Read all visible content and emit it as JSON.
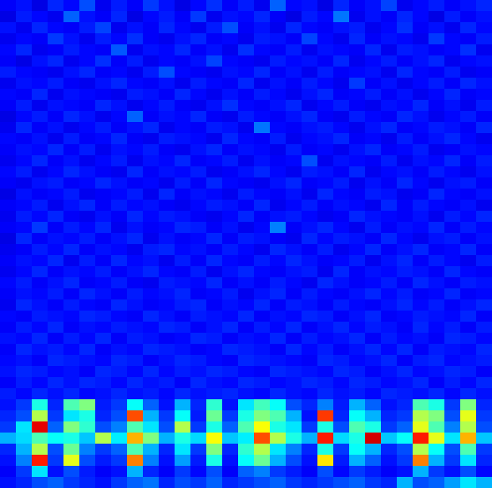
{
  "chart_data": {
    "type": "heatmap",
    "tick_labels": false,
    "color_range": [
      0,
      100
    ],
    "cells": [
      [
        12,
        14,
        10,
        16,
        13,
        20,
        11,
        15,
        12,
        18,
        14,
        10,
        13,
        17,
        12,
        15,
        11,
        22,
        13,
        14,
        10,
        16,
        12,
        14,
        19,
        11,
        13,
        15,
        12,
        14,
        16
      ],
      [
        10,
        15,
        13,
        11,
        22,
        14,
        12,
        16,
        10,
        13,
        15,
        12,
        18,
        11,
        14,
        13,
        16,
        12,
        10,
        15,
        13,
        24,
        11,
        14,
        12,
        16,
        13,
        10,
        15,
        12,
        14
      ],
      [
        14,
        11,
        16,
        13,
        12,
        15,
        19,
        11,
        14,
        12,
        16,
        13,
        11,
        15,
        20,
        12,
        14,
        11,
        16,
        13,
        12,
        14,
        15,
        11,
        13,
        17,
        12,
        14,
        11,
        16,
        13
      ],
      [
        11,
        13,
        12,
        18,
        14,
        11,
        15,
        13,
        17,
        12,
        11,
        14,
        16,
        12,
        13,
        11,
        15,
        14,
        12,
        19,
        13,
        11,
        16,
        12,
        14,
        13,
        11,
        18,
        13,
        12,
        15
      ],
      [
        13,
        16,
        11,
        12,
        15,
        13,
        12,
        21,
        11,
        14,
        13,
        16,
        12,
        14,
        11,
        17,
        13,
        12,
        15,
        11,
        14,
        13,
        12,
        16,
        11,
        15,
        14,
        12,
        13,
        17,
        11
      ],
      [
        12,
        10,
        14,
        16,
        11,
        13,
        17,
        12,
        15,
        11,
        13,
        12,
        14,
        19,
        13,
        12,
        11,
        15,
        13,
        14,
        12,
        16,
        11,
        13,
        15,
        12,
        14,
        16,
        11,
        13,
        14
      ],
      [
        15,
        13,
        12,
        11,
        14,
        16,
        12,
        13,
        11,
        15,
        20,
        13,
        12,
        11,
        14,
        13,
        16,
        12,
        14,
        11,
        15,
        12,
        13,
        14,
        11,
        16,
        13,
        12,
        15,
        11,
        12
      ],
      [
        11,
        14,
        13,
        15,
        12,
        11,
        14,
        16,
        13,
        12,
        14,
        11,
        15,
        13,
        12,
        16,
        11,
        14,
        12,
        15,
        13,
        11,
        18,
        12,
        14,
        11,
        13,
        15,
        12,
        16,
        14
      ],
      [
        13,
        12,
        16,
        11,
        14,
        13,
        12,
        11,
        15,
        14,
        12,
        16,
        13,
        11,
        14,
        12,
        15,
        13,
        11,
        14,
        16,
        12,
        13,
        15,
        12,
        14,
        11,
        13,
        16,
        12,
        13
      ],
      [
        12,
        15,
        11,
        14,
        13,
        12,
        16,
        14,
        11,
        13,
        15,
        12,
        11,
        14,
        17,
        13,
        12,
        14,
        16,
        11,
        13,
        15,
        12,
        11,
        14,
        13,
        16,
        12,
        14,
        11,
        15
      ],
      [
        10,
        13,
        15,
        12,
        16,
        14,
        11,
        13,
        22,
        12,
        14,
        13,
        16,
        12,
        11,
        15,
        13,
        12,
        14,
        16,
        12,
        11,
        15,
        13,
        12,
        16,
        14,
        11,
        13,
        15,
        12
      ],
      [
        11,
        16,
        12,
        14,
        11,
        13,
        15,
        12,
        14,
        16,
        11,
        13,
        12,
        15,
        14,
        11,
        24,
        13,
        12,
        14,
        15,
        13,
        11,
        14,
        16,
        12,
        13,
        15,
        14,
        12,
        16
      ],
      [
        13,
        12,
        14,
        11,
        15,
        12,
        13,
        16,
        12,
        11,
        15,
        14,
        13,
        11,
        16,
        13,
        12,
        15,
        11,
        13,
        14,
        16,
        12,
        13,
        11,
        15,
        12,
        14,
        16,
        13,
        11
      ],
      [
        12,
        14,
        13,
        16,
        12,
        15,
        11,
        14,
        13,
        15,
        12,
        11,
        14,
        16,
        12,
        14,
        13,
        11,
        15,
        12,
        13,
        11,
        14,
        16,
        12,
        13,
        15,
        11,
        12,
        14,
        13
      ],
      [
        11,
        13,
        16,
        12,
        14,
        11,
        13,
        15,
        11,
        14,
        13,
        16,
        12,
        13,
        15,
        11,
        14,
        12,
        13,
        20,
        11,
        14,
        13,
        12,
        15,
        11,
        14,
        13,
        16,
        12,
        15
      ],
      [
        13,
        15,
        11,
        13,
        16,
        14,
        12,
        11,
        16,
        12,
        14,
        13,
        15,
        11,
        12,
        14,
        16,
        13,
        11,
        15,
        14,
        12,
        16,
        11,
        13,
        14,
        12,
        15,
        13,
        11,
        14
      ],
      [
        12,
        11,
        14,
        15,
        12,
        13,
        16,
        14,
        12,
        13,
        11,
        15,
        12,
        16,
        13,
        12,
        11,
        14,
        16,
        12,
        13,
        15,
        11,
        14,
        12,
        16,
        13,
        11,
        14,
        15,
        12
      ],
      [
        10,
        14,
        12,
        13,
        15,
        11,
        12,
        13,
        15,
        11,
        16,
        12,
        14,
        13,
        11,
        15,
        13,
        12,
        14,
        11,
        16,
        13,
        12,
        15,
        14,
        11,
        12,
        16,
        13,
        12,
        14
      ],
      [
        12,
        13,
        15,
        11,
        14,
        16,
        12,
        15,
        13,
        14,
        12,
        11,
        13,
        15,
        14,
        12,
        16,
        11,
        13,
        15,
        12,
        14,
        13,
        11,
        16,
        12,
        15,
        13,
        12,
        14,
        11
      ],
      [
        11,
        15,
        13,
        16,
        12,
        11,
        14,
        12,
        16,
        13,
        15,
        14,
        12,
        11,
        13,
        16,
        12,
        14,
        15,
        13,
        11,
        12,
        16,
        14,
        13,
        12,
        14,
        11,
        15,
        13,
        16
      ],
      [
        12,
        13,
        18,
        12,
        15,
        13,
        16,
        11,
        14,
        12,
        13,
        16,
        15,
        12,
        14,
        11,
        13,
        25,
        12,
        14,
        16,
        13,
        11,
        15,
        12,
        14,
        13,
        16,
        12,
        15,
        13
      ],
      [
        10,
        16,
        12,
        14,
        13,
        15,
        12,
        14,
        16,
        11,
        14,
        12,
        13,
        16,
        12,
        15,
        14,
        12,
        11,
        16,
        13,
        15,
        14,
        12,
        16,
        13,
        11,
        14,
        15,
        12,
        14
      ],
      [
        11,
        12,
        15,
        13,
        16,
        12,
        14,
        13,
        11,
        15,
        16,
        13,
        14,
        12,
        15,
        13,
        11,
        16,
        14,
        12,
        15,
        11,
        13,
        16,
        12,
        14,
        16,
        12,
        13,
        16,
        12
      ],
      [
        12,
        14,
        13,
        16,
        11,
        15,
        12,
        16,
        13,
        14,
        11,
        15,
        12,
        16,
        13,
        12,
        15,
        13,
        16,
        14,
        12,
        13,
        15,
        11,
        14,
        16,
        12,
        15,
        13,
        11,
        15
      ],
      [
        11,
        13,
        16,
        12,
        14,
        13,
        15,
        12,
        14,
        16,
        13,
        12,
        15,
        11,
        14,
        16,
        13,
        12,
        14,
        15,
        11,
        16,
        12,
        14,
        13,
        15,
        14,
        12,
        16,
        13,
        12
      ],
      [
        13,
        15,
        12,
        14,
        16,
        12,
        13,
        15,
        12,
        11,
        15,
        14,
        13,
        16,
        12,
        14,
        12,
        15,
        13,
        11,
        16,
        14,
        12,
        13,
        15,
        12,
        16,
        14,
        12,
        15,
        14
      ],
      [
        12,
        14,
        13,
        15,
        12,
        16,
        14,
        12,
        15,
        13,
        14,
        16,
        12,
        13,
        15,
        11,
        14,
        16,
        12,
        15,
        13,
        12,
        14,
        16,
        13,
        15,
        12,
        13,
        16,
        12,
        13
      ],
      [
        11,
        16,
        14,
        12,
        15,
        13,
        12,
        16,
        14,
        12,
        13,
        15,
        16,
        12,
        14,
        13,
        16,
        12,
        15,
        14,
        12,
        15,
        13,
        12,
        14,
        16,
        13,
        15,
        12,
        14,
        16
      ],
      [
        13,
        12,
        15,
        14,
        13,
        16,
        15,
        13,
        12,
        16,
        14,
        12,
        15,
        14,
        13,
        16,
        12,
        14,
        13,
        16,
        15,
        12,
        14,
        16,
        12,
        13,
        15,
        14,
        13,
        16,
        12
      ],
      [
        12,
        15,
        13,
        16,
        12,
        14,
        13,
        15,
        14,
        13,
        16,
        15,
        12,
        14,
        16,
        12,
        15,
        13,
        16,
        12,
        14,
        16,
        13,
        15,
        14,
        12,
        16,
        13,
        15,
        12,
        15
      ],
      [
        14,
        13,
        16,
        12,
        15,
        13,
        16,
        12,
        15,
        14,
        12,
        13,
        16,
        15,
        12,
        14,
        13,
        16,
        12,
        15,
        13,
        14,
        16,
        12,
        15,
        13,
        14,
        12,
        16,
        15,
        13
      ],
      [
        12,
        16,
        14,
        15,
        13,
        16,
        12,
        14,
        13,
        16,
        15,
        14,
        12,
        13,
        16,
        15,
        14,
        12,
        16,
        13,
        15,
        12,
        14,
        16,
        13,
        16,
        12,
        15,
        14,
        13,
        16
      ],
      [
        13,
        14,
        12,
        16,
        15,
        14,
        13,
        16,
        15,
        12,
        14,
        16,
        15,
        13,
        12,
        16,
        15,
        14,
        13,
        12,
        16,
        15,
        13,
        14,
        16,
        12,
        15,
        16,
        13,
        14,
        15
      ],
      [
        14,
        16,
        15,
        13,
        14,
        12,
        16,
        15,
        13,
        16,
        13,
        15,
        14,
        16,
        15,
        13,
        12,
        16,
        15,
        14,
        13,
        16,
        15,
        12,
        14,
        16,
        13,
        14,
        16,
        15,
        12
      ],
      [
        12,
        15,
        13,
        16,
        14,
        16,
        15,
        13,
        16,
        14,
        15,
        12,
        16,
        14,
        13,
        16,
        15,
        13,
        14,
        16,
        15,
        13,
        16,
        15,
        13,
        14,
        16,
        12,
        15,
        13,
        16
      ],
      [
        15,
        13,
        16,
        14,
        16,
        13,
        14,
        16,
        14,
        15,
        13,
        16,
        14,
        15,
        16,
        14,
        13,
        16,
        14,
        13,
        16,
        14,
        15,
        13,
        16,
        15,
        14,
        16,
        13,
        16,
        14
      ],
      [
        14,
        18,
        40,
        16,
        45,
        50,
        15,
        18,
        38,
        22,
        14,
        30,
        16,
        42,
        14,
        35,
        44,
        38,
        20,
        16,
        25,
        15,
        30,
        22,
        14,
        16,
        45,
        40,
        18,
        50,
        16
      ],
      [
        16,
        20,
        55,
        18,
        35,
        40,
        16,
        20,
        80,
        30,
        18,
        38,
        15,
        48,
        18,
        40,
        50,
        45,
        30,
        14,
        82,
        16,
        38,
        30,
        16,
        18,
        55,
        50,
        20,
        60,
        18
      ],
      [
        18,
        35,
        90,
        22,
        50,
        42,
        20,
        25,
        45,
        35,
        20,
        55,
        18,
        40,
        22,
        45,
        62,
        40,
        35,
        18,
        40,
        20,
        45,
        40,
        18,
        22,
        60,
        45,
        25,
        55,
        20
      ],
      [
        30,
        34,
        45,
        38,
        40,
        32,
        55,
        36,
        70,
        50,
        30,
        40,
        34,
        62,
        32,
        36,
        80,
        55,
        40,
        30,
        85,
        34,
        40,
        92,
        32,
        38,
        85,
        60,
        35,
        70,
        32
      ],
      [
        16,
        30,
        55,
        20,
        48,
        25,
        18,
        22,
        45,
        30,
        16,
        35,
        18,
        50,
        16,
        42,
        55,
        35,
        25,
        16,
        40,
        18,
        38,
        30,
        16,
        20,
        55,
        38,
        20,
        45,
        18
      ],
      [
        14,
        25,
        85,
        18,
        60,
        20,
        15,
        18,
        75,
        25,
        14,
        28,
        15,
        40,
        14,
        38,
        48,
        30,
        20,
        14,
        65,
        15,
        30,
        22,
        14,
        18,
        75,
        30,
        18,
        35,
        16
      ],
      [
        12,
        18,
        35,
        14,
        20,
        15,
        12,
        14,
        30,
        16,
        12,
        18,
        13,
        20,
        12,
        22,
        25,
        18,
        15,
        12,
        20,
        13,
        18,
        15,
        12,
        14,
        30,
        18,
        14,
        20,
        13
      ],
      [
        14,
        16,
        20,
        22,
        18,
        16,
        14,
        18,
        22,
        24,
        16,
        20,
        18,
        22,
        16,
        18,
        20,
        22,
        18,
        16,
        18,
        20,
        22,
        18,
        16,
        30,
        20,
        22,
        28,
        35,
        30
      ]
    ]
  }
}
